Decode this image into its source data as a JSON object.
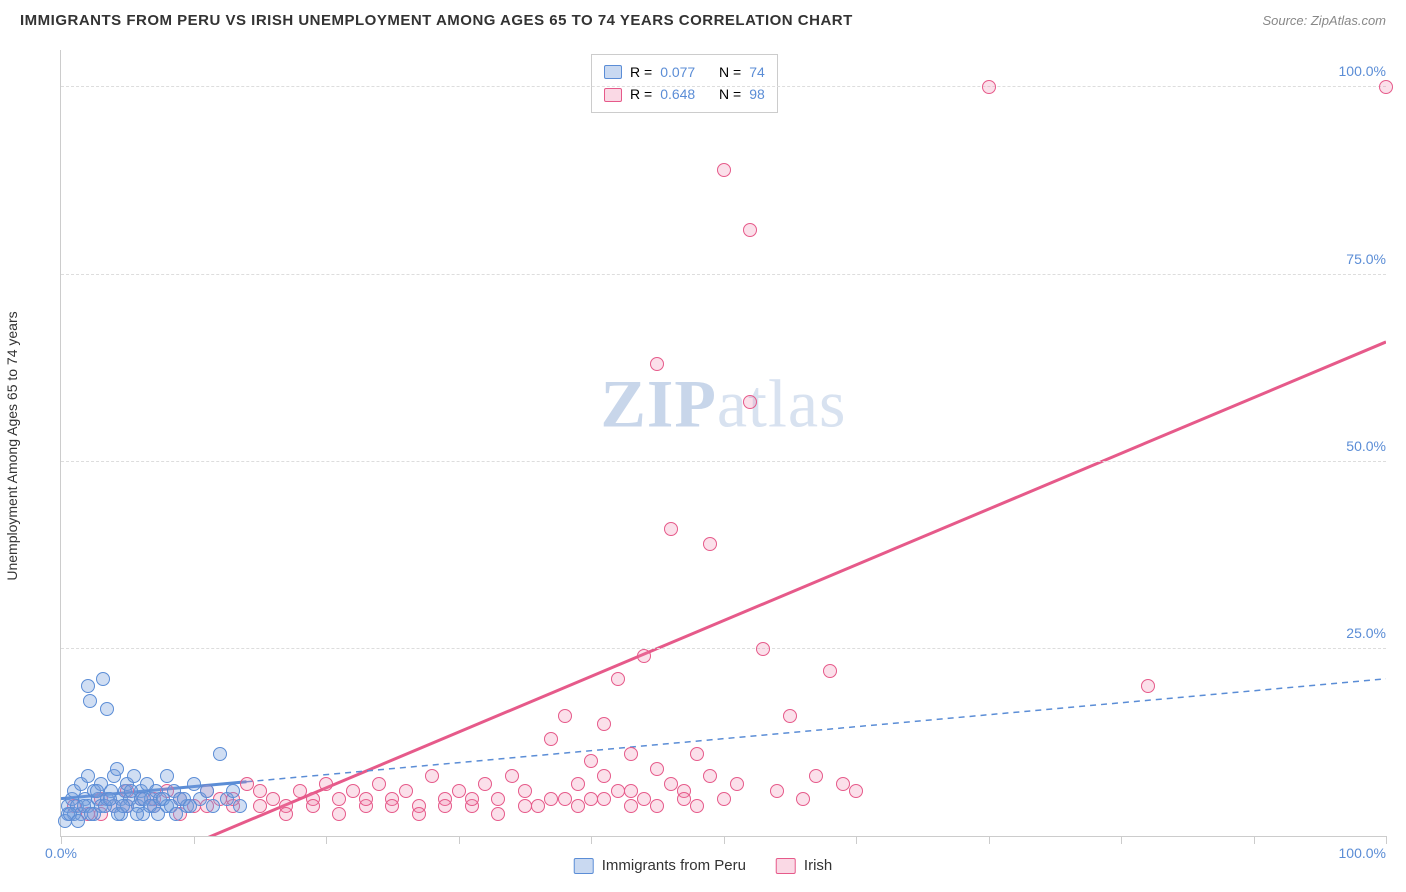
{
  "title": "IMMIGRANTS FROM PERU VS IRISH UNEMPLOYMENT AMONG AGES 65 TO 74 YEARS CORRELATION CHART",
  "source": "Source: ZipAtlas.com",
  "watermark_a": "ZIP",
  "watermark_b": "atlas",
  "y_axis_label": "Unemployment Among Ages 65 to 74 years",
  "chart": {
    "type": "scatter",
    "xlim": [
      0,
      100
    ],
    "ylim": [
      0,
      105
    ],
    "x_ticks": [
      0,
      10,
      20,
      30,
      40,
      50,
      60,
      70,
      80,
      90,
      100
    ],
    "y_ticks": [
      25,
      50,
      75,
      100
    ],
    "y_tick_labels": [
      "25.0%",
      "50.0%",
      "75.0%",
      "100.0%"
    ],
    "x_min_label": "0.0%",
    "x_max_label": "100.0%",
    "background_color": "#ffffff",
    "grid_color": "#dddddd",
    "axis_color": "#cccccc",
    "tick_label_color": "#5b8dd6",
    "axis_label_color": "#333333",
    "title_color": "#333333",
    "title_fontsize": 15,
    "label_fontsize": 14,
    "tick_fontsize": 14,
    "marker_size": 14
  },
  "series": {
    "blue": {
      "label": "Immigrants from Peru",
      "color_fill": "rgba(120,160,220,0.35)",
      "color_stroke": "#5b8dd6",
      "R": "0.077",
      "N": "74",
      "trend": {
        "x1": 0,
        "y1": 5,
        "x2": 100,
        "y2": 21,
        "dash": "6,5",
        "width": 1.5,
        "solid_until_x": 14
      },
      "points": [
        [
          0.5,
          3
        ],
        [
          0.5,
          4
        ],
        [
          0.8,
          5
        ],
        [
          1,
          3
        ],
        [
          1,
          6
        ],
        [
          1.2,
          4
        ],
        [
          1.5,
          7
        ],
        [
          1.5,
          3
        ],
        [
          1.8,
          5
        ],
        [
          2,
          8
        ],
        [
          2,
          4
        ],
        [
          2,
          20
        ],
        [
          2.2,
          18
        ],
        [
          2.5,
          6
        ],
        [
          2.5,
          3
        ],
        [
          2.8,
          5
        ],
        [
          3,
          7
        ],
        [
          3,
          4
        ],
        [
          3.2,
          21
        ],
        [
          3.5,
          17
        ],
        [
          3.5,
          5
        ],
        [
          3.8,
          6
        ],
        [
          4,
          8
        ],
        [
          4,
          4
        ],
        [
          4.2,
          9
        ],
        [
          4.5,
          5
        ],
        [
          4.5,
          3
        ],
        [
          4.8,
          6
        ],
        [
          5,
          7
        ],
        [
          5,
          4
        ],
        [
          5.2,
          5
        ],
        [
          5.5,
          8
        ],
        [
          5.8,
          4
        ],
        [
          6,
          6
        ],
        [
          6,
          5
        ],
        [
          6.2,
          3
        ],
        [
          6.5,
          7
        ],
        [
          6.8,
          5
        ],
        [
          7,
          4
        ],
        [
          7.2,
          6
        ],
        [
          7.5,
          5
        ],
        [
          8,
          8
        ],
        [
          8,
          4
        ],
        [
          8.5,
          6
        ],
        [
          9,
          5
        ],
        [
          9.5,
          4
        ],
        [
          10,
          7
        ],
        [
          10.5,
          5
        ],
        [
          11,
          6
        ],
        [
          11.5,
          4
        ],
        [
          12,
          11
        ],
        [
          12.5,
          5
        ],
        [
          13,
          6
        ],
        [
          13.5,
          4
        ],
        [
          0.3,
          2
        ],
        [
          0.7,
          3
        ],
        [
          1.3,
          2
        ],
        [
          1.7,
          4
        ],
        [
          2.3,
          3
        ],
        [
          2.7,
          6
        ],
        [
          3.3,
          4
        ],
        [
          3.7,
          5
        ],
        [
          4.3,
          3
        ],
        [
          4.7,
          4
        ],
        [
          5.3,
          6
        ],
        [
          5.7,
          3
        ],
        [
          6.3,
          5
        ],
        [
          6.7,
          4
        ],
        [
          7.3,
          3
        ],
        [
          7.7,
          5
        ],
        [
          8.3,
          4
        ],
        [
          8.7,
          3
        ],
        [
          9.3,
          5
        ],
        [
          9.7,
          4
        ]
      ]
    },
    "pink": {
      "label": "Irish",
      "color_fill": "rgba(240,130,170,0.25)",
      "color_stroke": "#e65a8a",
      "R": "0.648",
      "N": "98",
      "trend": {
        "x1": 6,
        "y1": -4,
        "x2": 100,
        "y2": 66,
        "dash": "none",
        "width": 3
      },
      "points": [
        [
          1,
          4
        ],
        [
          2,
          3
        ],
        [
          3,
          5
        ],
        [
          4,
          4
        ],
        [
          5,
          6
        ],
        [
          6,
          5
        ],
        [
          7,
          4
        ],
        [
          8,
          6
        ],
        [
          9,
          5
        ],
        [
          10,
          4
        ],
        [
          11,
          6
        ],
        [
          12,
          5
        ],
        [
          13,
          4
        ],
        [
          14,
          7
        ],
        [
          15,
          6
        ],
        [
          16,
          5
        ],
        [
          17,
          4
        ],
        [
          18,
          6
        ],
        [
          19,
          5
        ],
        [
          20,
          7
        ],
        [
          21,
          5
        ],
        [
          22,
          6
        ],
        [
          23,
          4
        ],
        [
          24,
          7
        ],
        [
          25,
          5
        ],
        [
          26,
          6
        ],
        [
          27,
          4
        ],
        [
          28,
          8
        ],
        [
          29,
          5
        ],
        [
          30,
          6
        ],
        [
          31,
          4
        ],
        [
          32,
          7
        ],
        [
          33,
          5
        ],
        [
          34,
          8
        ],
        [
          35,
          6
        ],
        [
          36,
          4
        ],
        [
          37,
          13
        ],
        [
          38,
          5
        ],
        [
          38,
          16
        ],
        [
          39,
          7
        ],
        [
          40,
          10
        ],
        [
          40,
          5
        ],
        [
          41,
          8
        ],
        [
          41,
          15
        ],
        [
          42,
          6
        ],
        [
          42,
          21
        ],
        [
          43,
          11
        ],
        [
          43,
          4
        ],
        [
          44,
          5
        ],
        [
          44,
          24
        ],
        [
          45,
          9
        ],
        [
          45,
          63
        ],
        [
          46,
          7
        ],
        [
          46,
          41
        ],
        [
          47,
          6
        ],
        [
          48,
          11
        ],
        [
          48,
          4
        ],
        [
          49,
          8
        ],
        [
          49,
          39
        ],
        [
          50,
          5
        ],
        [
          50,
          89
        ],
        [
          51,
          7
        ],
        [
          52,
          81
        ],
        [
          52,
          58
        ],
        [
          53,
          25
        ],
        [
          54,
          6
        ],
        [
          55,
          16
        ],
        [
          56,
          5
        ],
        [
          57,
          8
        ],
        [
          58,
          22
        ],
        [
          59,
          7
        ],
        [
          60,
          6
        ],
        [
          70,
          100
        ],
        [
          82,
          20
        ],
        [
          100,
          100
        ],
        [
          3,
          3
        ],
        [
          5,
          4
        ],
        [
          7,
          5
        ],
        [
          9,
          3
        ],
        [
          11,
          4
        ],
        [
          13,
          5
        ],
        [
          15,
          4
        ],
        [
          17,
          3
        ],
        [
          19,
          4
        ],
        [
          21,
          3
        ],
        [
          23,
          5
        ],
        [
          25,
          4
        ],
        [
          27,
          3
        ],
        [
          29,
          4
        ],
        [
          31,
          5
        ],
        [
          33,
          3
        ],
        [
          35,
          4
        ],
        [
          37,
          5
        ],
        [
          39,
          4
        ],
        [
          41,
          5
        ],
        [
          43,
          6
        ],
        [
          45,
          4
        ],
        [
          47,
          5
        ]
      ]
    }
  },
  "legend_top": {
    "r_label": "R =",
    "n_label": "N ="
  }
}
